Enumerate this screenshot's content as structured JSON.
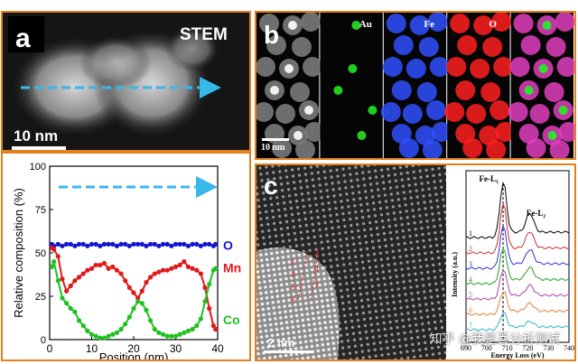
{
  "panel_a": {
    "letter": "a",
    "stem_label": "STEM",
    "scalebar": "10 nm",
    "chart_data": {
      "type": "line",
      "ylabel": "Relative composition (%)",
      "xlabel": "Position (nm)",
      "xlim": [
        0,
        40
      ],
      "ylim": [
        0,
        100
      ],
      "xticks": [
        "0",
        "10",
        "20",
        "30",
        "40"
      ],
      "yticks": [
        "0",
        "25",
        "50",
        "75",
        "100"
      ],
      "series": [
        {
          "name": "O",
          "color": "#1414d0",
          "x": [
            0.5,
            1,
            2,
            3,
            4,
            5,
            6,
            7,
            8,
            9,
            10,
            11,
            12,
            13,
            14,
            15,
            16,
            17,
            18,
            19,
            20,
            21,
            22,
            23,
            24,
            25,
            26,
            27,
            28,
            29,
            30,
            31,
            32,
            33,
            34,
            35,
            36,
            37,
            38,
            39,
            39.5
          ],
          "y": [
            55,
            54,
            55,
            54,
            55,
            55,
            54,
            55,
            55,
            54,
            55,
            55,
            54,
            55,
            55,
            55,
            54,
            55,
            55,
            54,
            55,
            55,
            55,
            54,
            55,
            55,
            54,
            55,
            55,
            54,
            55,
            55,
            55,
            54,
            55,
            55,
            54,
            55,
            55,
            54,
            55
          ]
        },
        {
          "name": "Mn",
          "color": "#e01818",
          "x": [
            0.5,
            1,
            2,
            3,
            4,
            5,
            6,
            7,
            8,
            9,
            10,
            11,
            12,
            13,
            14,
            15,
            16,
            17,
            18,
            19,
            20,
            21,
            22,
            23,
            24,
            25,
            26,
            27,
            28,
            29,
            30,
            31,
            32,
            33,
            34,
            35,
            36,
            37,
            38,
            39,
            39.5
          ],
          "y": [
            53,
            52,
            48,
            35,
            28,
            31,
            34,
            36,
            38,
            40,
            41,
            43,
            43,
            44,
            41,
            42,
            40,
            38,
            34,
            30,
            27,
            24,
            28,
            33,
            36,
            38,
            39,
            40,
            40,
            41,
            42,
            43,
            45,
            42,
            41,
            40,
            38,
            30,
            18,
            8,
            6
          ]
        },
        {
          "name": "Co",
          "color": "#20c020",
          "x": [
            0.5,
            1,
            2,
            3,
            4,
            5,
            6,
            7,
            8,
            9,
            10,
            11,
            12,
            13,
            14,
            15,
            16,
            17,
            18,
            19,
            20,
            21,
            22,
            23,
            24,
            25,
            26,
            27,
            28,
            29,
            30,
            31,
            32,
            33,
            34,
            35,
            36,
            37,
            38,
            39,
            39.5
          ],
          "y": [
            42,
            45,
            34,
            24,
            21,
            18,
            16,
            11,
            8,
            5,
            3,
            2,
            1,
            1,
            2,
            3,
            4,
            6,
            9,
            13,
            18,
            22,
            21,
            17,
            11,
            6,
            4,
            3,
            2,
            2,
            2,
            3,
            4,
            5,
            6,
            8,
            12,
            22,
            32,
            40,
            41
          ]
        }
      ],
      "arrow_color": "#38b8e8"
    }
  },
  "panel_b": {
    "letter": "b",
    "scalebar": "10 nm",
    "channels": [
      {
        "label": "",
        "color": "#ffffff"
      },
      {
        "label": "Au",
        "color": "#20d020"
      },
      {
        "label": "Fe",
        "color": "#3050ff"
      },
      {
        "label": "O",
        "color": "#ff2020"
      },
      {
        "label": "",
        "color": "#e040c0"
      }
    ]
  },
  "panel_c": {
    "letter": "c",
    "scalebar": "2 nm",
    "markers_left": [
      "1",
      "3",
      "5",
      "6"
    ],
    "markers_right": [
      "2",
      "4",
      "7"
    ],
    "spectrum": {
      "type": "line",
      "xlabel": "Energy Loss (eV)",
      "ylabel": "Intensity (a.u.)",
      "xticks": [
        "690",
        "700",
        "710",
        "720",
        "730",
        "740"
      ],
      "peak_l3": "Fe-L₃",
      "peak_l2": "Fe-L₂",
      "labels": [
        "1",
        "2",
        "3",
        "4",
        "5",
        "6",
        "7"
      ],
      "colors": [
        "#000000",
        "#d03030",
        "#3030d0",
        "#20a020",
        "#b040b0",
        "#e08030",
        "#30b0d0"
      ]
    }
  },
  "watermark": "知乎 @我是百分析测试"
}
